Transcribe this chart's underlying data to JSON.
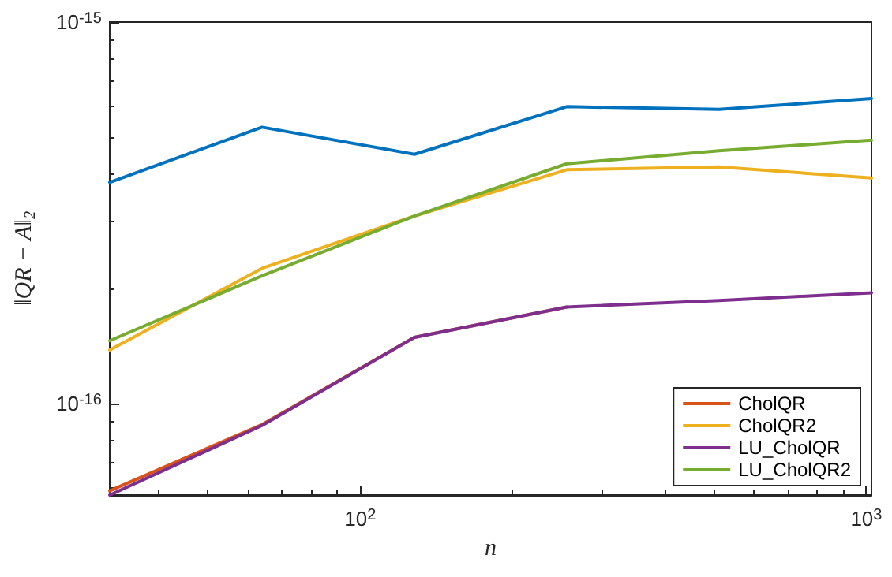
{
  "chart_data": {
    "type": "line",
    "xlabel": "n",
    "ylabel": "‖QR − A‖$_{2}$",
    "log": "xy",
    "grid": false,
    "legend": "bottom right",
    "marker": "none",
    "line_style": "solid",
    "xlim": [
      32,
      1024
    ],
    "xticks": [
      {
        "value": 100,
        "label": "10$^{2}$"
      },
      {
        "value": 1000,
        "label": "10$^{3}$"
      }
    ],
    "ylim": [
      5.75e-17,
      1e-15
    ],
    "yticks": [
      {
        "value": 1e-16,
        "label": "10$^{-16}$"
      },
      {
        "value": 1e-15,
        "label": "10$^{-15}$"
      }
    ],
    "x": [
      32,
      64,
      128,
      256,
      512,
      1024
    ],
    "series": [
      {
        "color": "#0072bd",
        "values": [
          3.8e-16,
          5.3e-16,
          4.5e-16,
          6e-16,
          5.9e-16,
          6.3e-16
        ]
      },
      {
        "name": "CholQR",
        "color": "#d95319",
        "values": [
          5.9e-17,
          8.8e-17,
          1.49e-16,
          1.79e-16,
          null,
          null
        ]
      },
      {
        "name": "CholQR2",
        "color": "#edb120",
        "values": [
          1.38e-16,
          2.26e-16,
          3.1e-16,
          4.1e-16,
          4.17e-16,
          3.9e-16
        ]
      },
      {
        "name": "LU_CholQR",
        "color": "#7e2f8e",
        "values": [
          5.75e-17,
          8.75e-17,
          1.49e-16,
          1.79e-16,
          1.86e-16,
          1.95e-16
        ]
      },
      {
        "name": "LU_CholQR2",
        "color": "#77ac30",
        "values": [
          1.46e-16,
          2.16e-16,
          3.1e-16,
          4.25e-16,
          4.6e-16,
          4.9e-16
        ]
      }
    ]
  }
}
